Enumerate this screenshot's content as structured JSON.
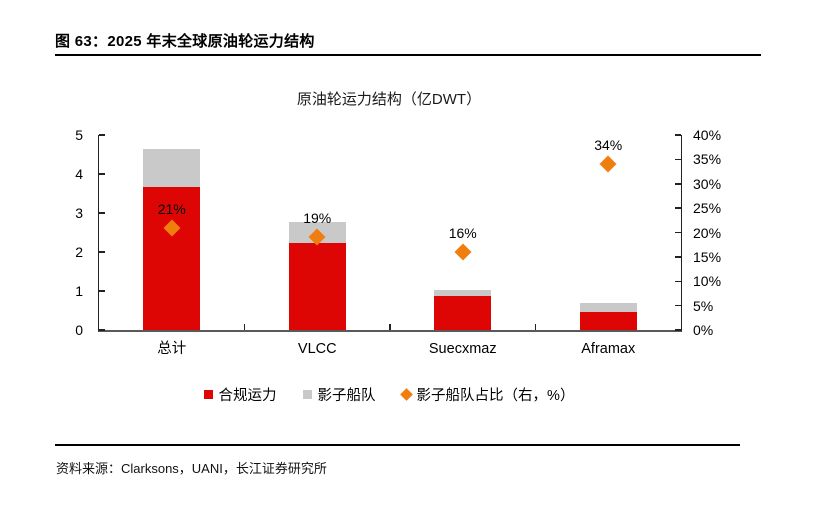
{
  "page": {
    "figure_caption": "图 63：2025 年末全球原油轮运力结构",
    "source_note": "资料来源：Clarksons，UANI，长江证券研究所"
  },
  "chart_data": {
    "type": "bar",
    "title": "原油轮运力结构（亿DWT）",
    "categories": [
      "总计",
      "VLCC",
      "Suecxmaz",
      "Aframax"
    ],
    "series": [
      {
        "name": "合规运力",
        "type": "stacked-bar",
        "color": "#dd0604",
        "values": [
          3.67,
          2.23,
          0.86,
          0.45
        ]
      },
      {
        "name": "影子船队",
        "type": "stacked-bar",
        "color": "#c9c9c9",
        "values": [
          0.97,
          0.53,
          0.17,
          0.23
        ]
      },
      {
        "name": "影子船队占比（右，%）",
        "type": "scatter-diamond",
        "axis": "right",
        "color": "#f07e0e",
        "values": [
          21,
          19,
          16,
          34
        ],
        "labels": [
          "21%",
          "19%",
          "16%",
          "34%"
        ]
      }
    ],
    "left_axis": {
      "min": 0,
      "max": 5,
      "ticks": [
        "0",
        "1",
        "2",
        "3",
        "4",
        "5"
      ]
    },
    "right_axis": {
      "min": 0,
      "max": 40,
      "ticks": [
        "0%",
        "5%",
        "10%",
        "15%",
        "20%",
        "25%",
        "30%",
        "35%",
        "40%"
      ]
    },
    "legend": [
      {
        "label": "合规运力",
        "marker": "square",
        "color": "#dd0604"
      },
      {
        "label": "影子船队",
        "marker": "square",
        "color": "#c9c9c9"
      },
      {
        "label": "影子船队占比（右，%）",
        "marker": "diamond",
        "color": "#f07e0e"
      }
    ],
    "layout_hints": {
      "grid": false,
      "legend_position": "bottom",
      "bar_stacked": true,
      "secondary_axis": true
    }
  }
}
